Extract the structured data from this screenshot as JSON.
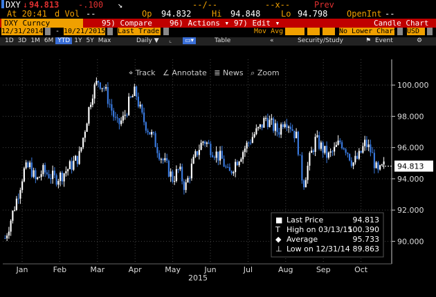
{
  "header": {
    "ticker": "DXY",
    "arrow": "↓",
    "last": "94.813",
    "change": "-.100",
    "trend_icon": "↘",
    "dashes1": "--/--",
    "x_sep": "--x--",
    "prev_label": "Prev",
    "at_time": "At 20:41",
    "d_vol_label": "d Vol",
    "d_vol_val": "--",
    "op_label": "Op",
    "op_val": "94.832",
    "hi_label": "Hi",
    "hi_val": "94.848",
    "lo_label": "Lo",
    "lo_val": "94.798",
    "openint_label": "OpenInt",
    "openint_val": "--"
  },
  "toolbar": {
    "security": "DXY Curncy",
    "compare": "95) Compare",
    "actions": "96) Actions ▾",
    "edit": "97) Edit ▾",
    "chart_type": "Candle Chart",
    "start_date": "12/31/2014",
    "end_date": "10/21/2015",
    "price_field": "Last Trade",
    "mov_avg": "Mov Avg",
    "lower_chart": "No Lower Chart",
    "currency": "USD",
    "periods": [
      "1D",
      "3D",
      "1M",
      "6M",
      "YTD",
      "1Y",
      "5Y",
      "Max"
    ],
    "selected_period": "YTD",
    "frequency": "Daily ▼",
    "table": "Table",
    "security_study": "Security/Study",
    "event": "Event",
    "track": "Track",
    "annotate": "Annotate",
    "news": "News",
    "zoom": "Zoom"
  },
  "colors": {
    "orange": "#f0a000",
    "red_bar": "#c00000",
    "up": "#ffffff",
    "down": "#3a7be0",
    "grid": "#444444"
  },
  "chart_data": {
    "type": "candlestick",
    "title": "DXY Curncy",
    "xlabel": "2015",
    "ylabel": "",
    "ylim": [
      89.0,
      101.2
    ],
    "yticks": [
      "100.000",
      "98.000",
      "96.000",
      "94.000",
      "92.000",
      "90.000"
    ],
    "ytick_values": [
      100,
      98,
      96,
      94,
      92,
      90
    ],
    "x_ticks": [
      "Jan",
      "Feb",
      "Mar",
      "Apr",
      "May",
      "Jun",
      "Jul",
      "Aug",
      "Sep",
      "Oct"
    ],
    "last_price_label": "94.813",
    "series_close": [
      90.2,
      91.5,
      92.9,
      94.5,
      94.8,
      93.8,
      94.5,
      94.3,
      94.0,
      94.2,
      94.6,
      95.0,
      95.5,
      97.5,
      99.5,
      100.3,
      99.8,
      98.6,
      97.4,
      97.8,
      98.9,
      99.6,
      98.0,
      97.2,
      96.5,
      95.5,
      94.8,
      94.0,
      94.6,
      93.4,
      94.7,
      95.8,
      96.5,
      96.0,
      95.6,
      95.2,
      94.2,
      95.0,
      95.6,
      96.2,
      96.8,
      97.2,
      97.9,
      97.4,
      97.0,
      97.9,
      97.4,
      96.6,
      93.6,
      95.2,
      96.5,
      96.0,
      95.4,
      95.8,
      96.4,
      95.9,
      95.0,
      95.4,
      96.3,
      95.7,
      94.3,
      94.8
    ],
    "legend": [
      {
        "label": "Last Price",
        "value": "94.813"
      },
      {
        "label": "High on 03/13/15",
        "value": "100.390"
      },
      {
        "label": "Average",
        "value": "95.733"
      },
      {
        "label": "Low on 12/31/14",
        "value": "89.863"
      }
    ],
    "grid": true
  }
}
